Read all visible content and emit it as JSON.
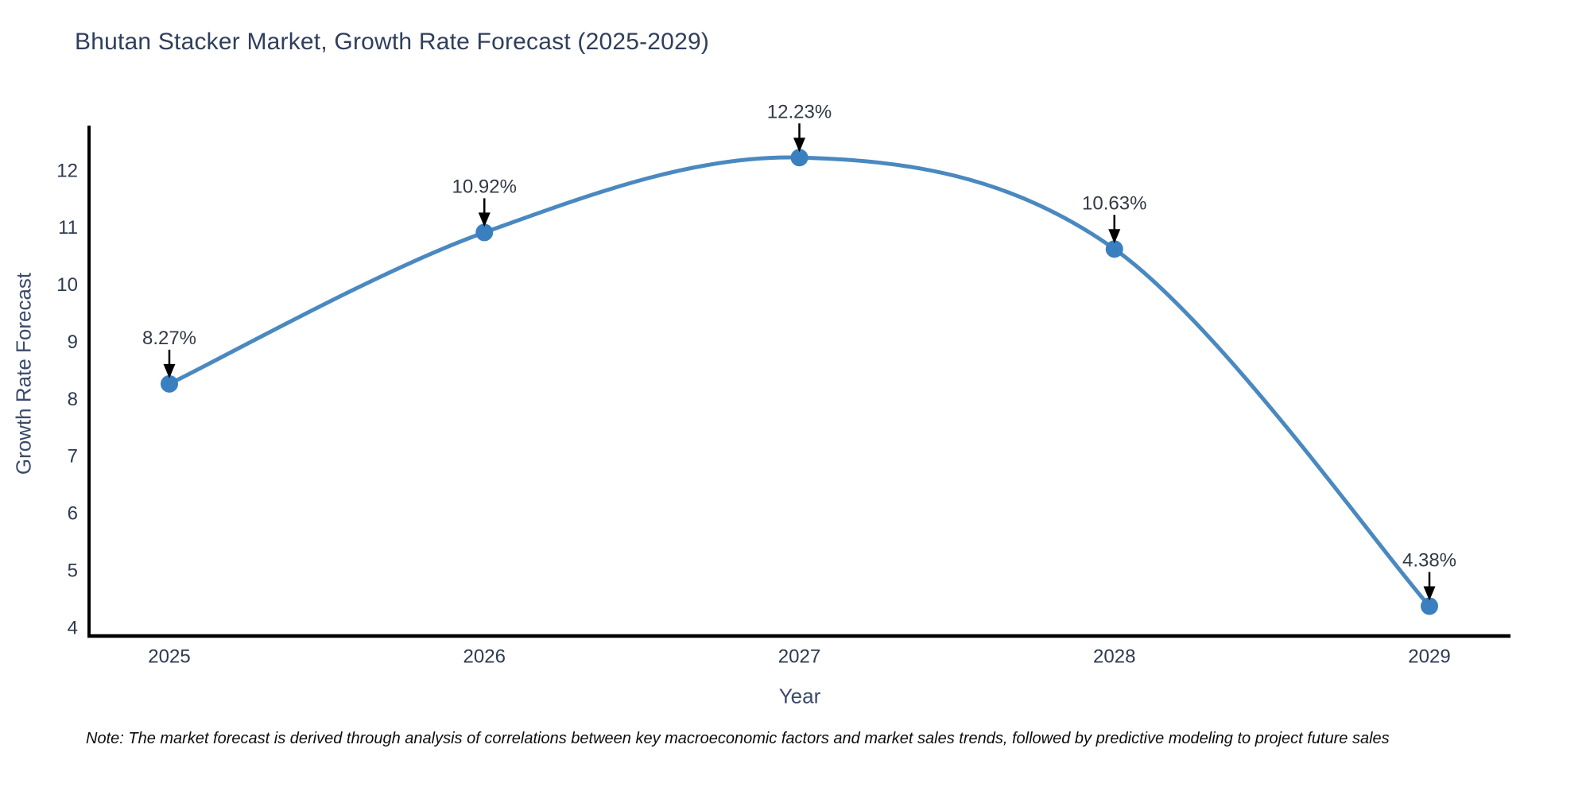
{
  "title": "Bhutan Stacker Market, Growth Rate Forecast (2025-2029)",
  "note": "Note: The market forecast is derived through analysis of correlations between key macroeconomic factors and market sales trends, followed by predictive modeling to project future sales",
  "chart_data": {
    "type": "line",
    "title": "Bhutan Stacker Market, Growth Rate Forecast (2025-2029)",
    "xlabel": "Year",
    "ylabel": "Growth Rate Forecast",
    "categories": [
      "2025",
      "2026",
      "2027",
      "2028",
      "2029"
    ],
    "series": [
      {
        "name": "Growth Rate Forecast",
        "values": [
          8.27,
          10.92,
          12.23,
          10.63,
          4.38
        ],
        "point_labels": [
          "8.27%",
          "10.92%",
          "12.23%",
          "10.63%",
          "4.38%"
        ]
      }
    ],
    "yticks": [
      4,
      5,
      6,
      7,
      8,
      9,
      10,
      11,
      12
    ],
    "ylim": [
      3.83,
      12.79
    ],
    "curve": "spline",
    "grid": false,
    "legend": false,
    "colors": {
      "line": "#4a89bf",
      "marker": "#3a7fbf",
      "axis": "#000000",
      "tick_label": "#2e3a52",
      "annotation_text": "#333a45",
      "annotation_arrow": "#000000"
    }
  }
}
